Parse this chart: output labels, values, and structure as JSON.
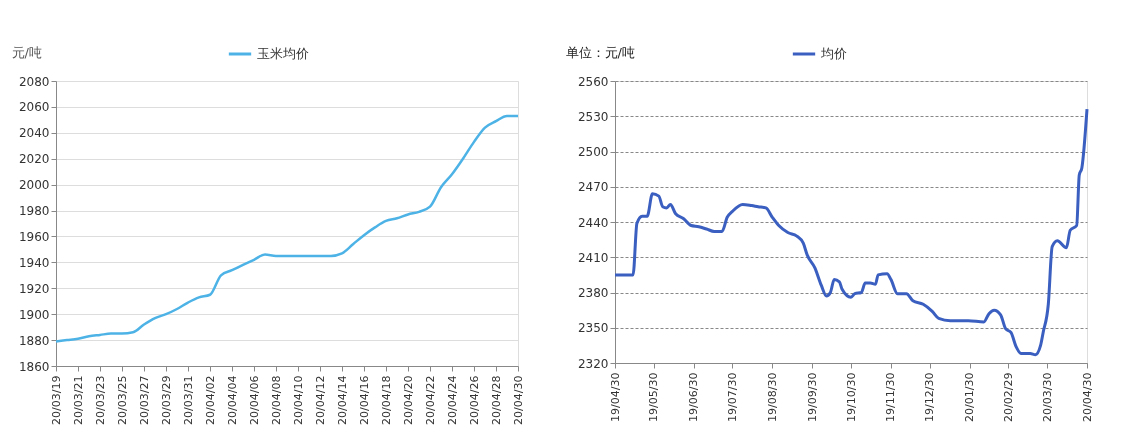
{
  "chart_data": [
    {
      "type": "line",
      "ylabel": "元/吨",
      "legend": "top",
      "grid": "y",
      "x": [
        "2020-03-19",
        "2020-03-20",
        "2020-03-21",
        "2020-03-22",
        "2020-03-23",
        "2020-03-24",
        "2020-03-25",
        "2020-03-26",
        "2020-03-27",
        "2020-03-28",
        "2020-03-29",
        "2020-03-30",
        "2020-03-31",
        "2020-04-01",
        "2020-04-02",
        "2020-04-03",
        "2020-04-04",
        "2020-04-05",
        "2020-04-06",
        "2020-04-07",
        "2020-04-08",
        "2020-04-09",
        "2020-04-10",
        "2020-04-11",
        "2020-04-12",
        "2020-04-13",
        "2020-04-14",
        "2020-04-15",
        "2020-04-16",
        "2020-04-17",
        "2020-04-18",
        "2020-04-19",
        "2020-04-20",
        "2020-04-21",
        "2020-04-22",
        "2020-04-23",
        "2020-04-24",
        "2020-04-25",
        "2020-04-26",
        "2020-04-27",
        "2020-04-28",
        "2020-04-29",
        "2020-04-30"
      ],
      "series": [
        {
          "name": "玉米均价",
          "color": "#4db3e6",
          "values": [
            1879,
            1880,
            1881,
            1883,
            1884,
            1885,
            1885,
            1886,
            1892,
            1897,
            1900,
            1904,
            1909,
            1913,
            1915,
            1930,
            1934,
            1938,
            1942,
            1946,
            1945,
            1945,
            1945,
            1945,
            1945,
            1945,
            1947,
            1954,
            1961,
            1967,
            1972,
            1974,
            1977,
            1979,
            1983,
            1998,
            2008,
            2020,
            2033,
            2044,
            2049,
            2053,
            2053
          ]
        }
      ],
      "ylim": [
        1860,
        2080
      ],
      "yticks": [
        1860,
        1880,
        1900,
        1920,
        1940,
        1960,
        1980,
        2000,
        2020,
        2040,
        2060,
        2080
      ],
      "xlim": [
        "2020-03-19",
        "2020-04-30"
      ],
      "xticks": [
        {
          "value": "2020-03-19",
          "label": "20/03/19"
        },
        {
          "value": "2020-03-21",
          "label": "20/03/21"
        },
        {
          "value": "2020-03-23",
          "label": "20/03/23"
        },
        {
          "value": "2020-03-25",
          "label": "20/03/25"
        },
        {
          "value": "2020-03-27",
          "label": "20/03/27"
        },
        {
          "value": "2020-03-29",
          "label": "20/03/29"
        },
        {
          "value": "2020-03-31",
          "label": "20/03/31"
        },
        {
          "value": "2020-04-02",
          "label": "20/04/02"
        },
        {
          "value": "2020-04-04",
          "label": "20/04/04"
        },
        {
          "value": "2020-04-06",
          "label": "20/04/06"
        },
        {
          "value": "2020-04-08",
          "label": "20/04/08"
        },
        {
          "value": "2020-04-10",
          "label": "20/04/10"
        },
        {
          "value": "2020-04-12",
          "label": "20/04/12"
        },
        {
          "value": "2020-04-14",
          "label": "20/04/14"
        },
        {
          "value": "2020-04-16",
          "label": "20/04/16"
        },
        {
          "value": "2020-04-18",
          "label": "20/04/18"
        },
        {
          "value": "2020-04-20",
          "label": "20/04/20"
        },
        {
          "value": "2020-04-22",
          "label": "20/04/22"
        },
        {
          "value": "2020-04-24",
          "label": "20/04/24"
        },
        {
          "value": "2020-04-26",
          "label": "20/04/26"
        },
        {
          "value": "2020-04-28",
          "label": "20/04/28"
        },
        {
          "value": "2020-04-30",
          "label": "20/04/30"
        }
      ]
    },
    {
      "type": "line",
      "ylabel": "单位：元/吨",
      "legend": "top",
      "grid": "y",
      "x": [
        "2019-04-30",
        "2019-05-14",
        "2019-05-17",
        "2019-05-21",
        "2019-05-25",
        "2019-05-29",
        "2019-06-03",
        "2019-06-06",
        "2019-06-09",
        "2019-06-12",
        "2019-06-16",
        "2019-06-22",
        "2019-06-28",
        "2019-07-04",
        "2019-07-10",
        "2019-07-16",
        "2019-07-22",
        "2019-07-26",
        "2019-07-30",
        "2019-08-07",
        "2019-08-14",
        "2019-08-19",
        "2019-08-25",
        "2019-08-30",
        "2019-09-04",
        "2019-09-11",
        "2019-09-18",
        "2019-09-23",
        "2019-09-26",
        "2019-10-02",
        "2019-10-07",
        "2019-10-11",
        "2019-10-14",
        "2019-10-17",
        "2019-10-21",
        "2019-10-23",
        "2019-10-30",
        "2019-11-02",
        "2019-11-07",
        "2019-11-10",
        "2019-11-14",
        "2019-11-18",
        "2019-11-20",
        "2019-11-27",
        "2019-11-30",
        "2019-12-05",
        "2019-12-12",
        "2019-12-17",
        "2019-12-25",
        "2020-01-01",
        "2020-01-06",
        "2020-01-15",
        "2020-01-29",
        "2020-02-10",
        "2020-02-14",
        "2020-02-18",
        "2020-02-23",
        "2020-02-27",
        "2020-03-02",
        "2020-03-06",
        "2020-03-10",
        "2020-03-17",
        "2020-03-21",
        "2020-03-25",
        "2020-03-27",
        "2020-03-31",
        "2020-04-03",
        "2020-04-07",
        "2020-04-14",
        "2020-04-17",
        "2020-04-22",
        "2020-04-24",
        "2020-04-26",
        "2020-04-30"
      ],
      "series": [
        {
          "name": "均价",
          "color": "#3a5fc0",
          "values": [
            2395,
            2395,
            2439,
            2445,
            2445,
            2464,
            2462,
            2453,
            2452,
            2455,
            2447,
            2443,
            2437,
            2436,
            2434,
            2432,
            2432,
            2444,
            2449,
            2455,
            2454,
            2453,
            2452,
            2444,
            2437,
            2431,
            2428,
            2422,
            2412,
            2401,
            2386,
            2377,
            2380,
            2391,
            2389,
            2383,
            2376,
            2379,
            2380,
            2388,
            2388,
            2387,
            2395,
            2396,
            2391,
            2379,
            2379,
            2373,
            2370,
            2364,
            2358,
            2356,
            2356,
            2355,
            2362,
            2365,
            2361,
            2349,
            2346,
            2334,
            2328,
            2328,
            2327,
            2335,
            2346,
            2370,
            2419,
            2424,
            2418,
            2433,
            2437,
            2480,
            2486,
            2536
          ]
        }
      ],
      "ylim": [
        2320,
        2560
      ],
      "yticks": [
        2320,
        2350,
        2380,
        2410,
        2440,
        2470,
        2500,
        2530,
        2560
      ],
      "xlim": [
        "2019-04-30",
        "2020-04-30"
      ],
      "xticks": [
        {
          "value": "2019-04-30",
          "label": "19/04/30"
        },
        {
          "value": "2019-05-30",
          "label": "19/05/30"
        },
        {
          "value": "2019-06-30",
          "label": "19/06/30"
        },
        {
          "value": "2019-07-30",
          "label": "19/07/30"
        },
        {
          "value": "2019-08-30",
          "label": "19/08/30"
        },
        {
          "value": "2019-09-30",
          "label": "19/09/30"
        },
        {
          "value": "2019-10-30",
          "label": "19/10/30"
        },
        {
          "value": "2019-11-30",
          "label": "19/11/30"
        },
        {
          "value": "2019-12-30",
          "label": "19/12/30"
        },
        {
          "value": "2020-01-30",
          "label": "20/01/30"
        },
        {
          "value": "2020-02-29",
          "label": "20/02/29"
        },
        {
          "value": "2020-03-30",
          "label": "20/03/30"
        },
        {
          "value": "2020-04-30",
          "label": "20/04/30"
        }
      ]
    }
  ]
}
